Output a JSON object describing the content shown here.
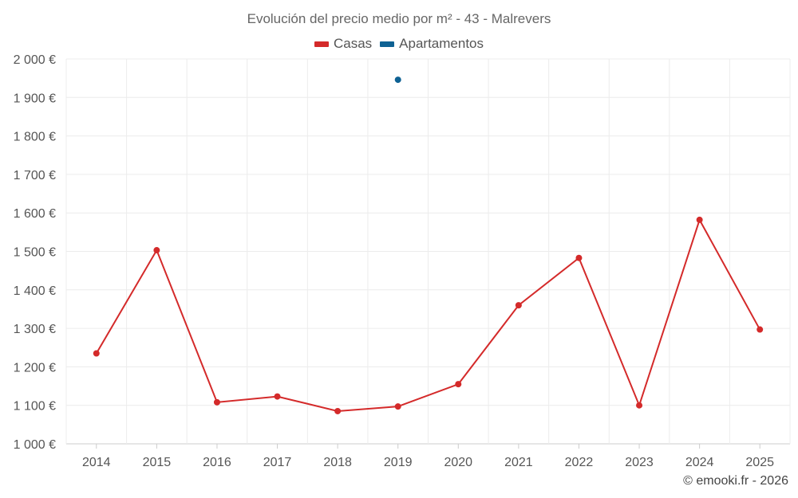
{
  "credit": "© emooki.fr - 2026",
  "chart_data": {
    "type": "line",
    "title": "Evolución del precio medio por m² - 43 - Malrevers",
    "xlabel": "",
    "ylabel": "",
    "categories": [
      "2014",
      "2015",
      "2016",
      "2017",
      "2018",
      "2019",
      "2020",
      "2021",
      "2022",
      "2023",
      "2024",
      "2025"
    ],
    "ylim": [
      1000,
      2000
    ],
    "yticks": [
      1000,
      1100,
      1200,
      1300,
      1400,
      1500,
      1600,
      1700,
      1800,
      1900,
      2000
    ],
    "ytick_labels": [
      "1 000 €",
      "1 100 €",
      "1 200 €",
      "1 300 €",
      "1 400 €",
      "1 500 €",
      "1 600 €",
      "1 700 €",
      "1 800 €",
      "1 900 €",
      "2 000 €"
    ],
    "grid": true,
    "legend_position": "top-center",
    "series": [
      {
        "name": "Casas",
        "color": "#d42a2a",
        "values": [
          1235,
          1503,
          1108,
          1123,
          1085,
          1097,
          1155,
          1360,
          1483,
          1100,
          1582,
          1297
        ]
      },
      {
        "name": "Apartamentos",
        "color": "#0e6193",
        "values": [
          null,
          null,
          null,
          null,
          null,
          1946,
          null,
          null,
          null,
          null,
          null,
          null
        ]
      }
    ]
  }
}
